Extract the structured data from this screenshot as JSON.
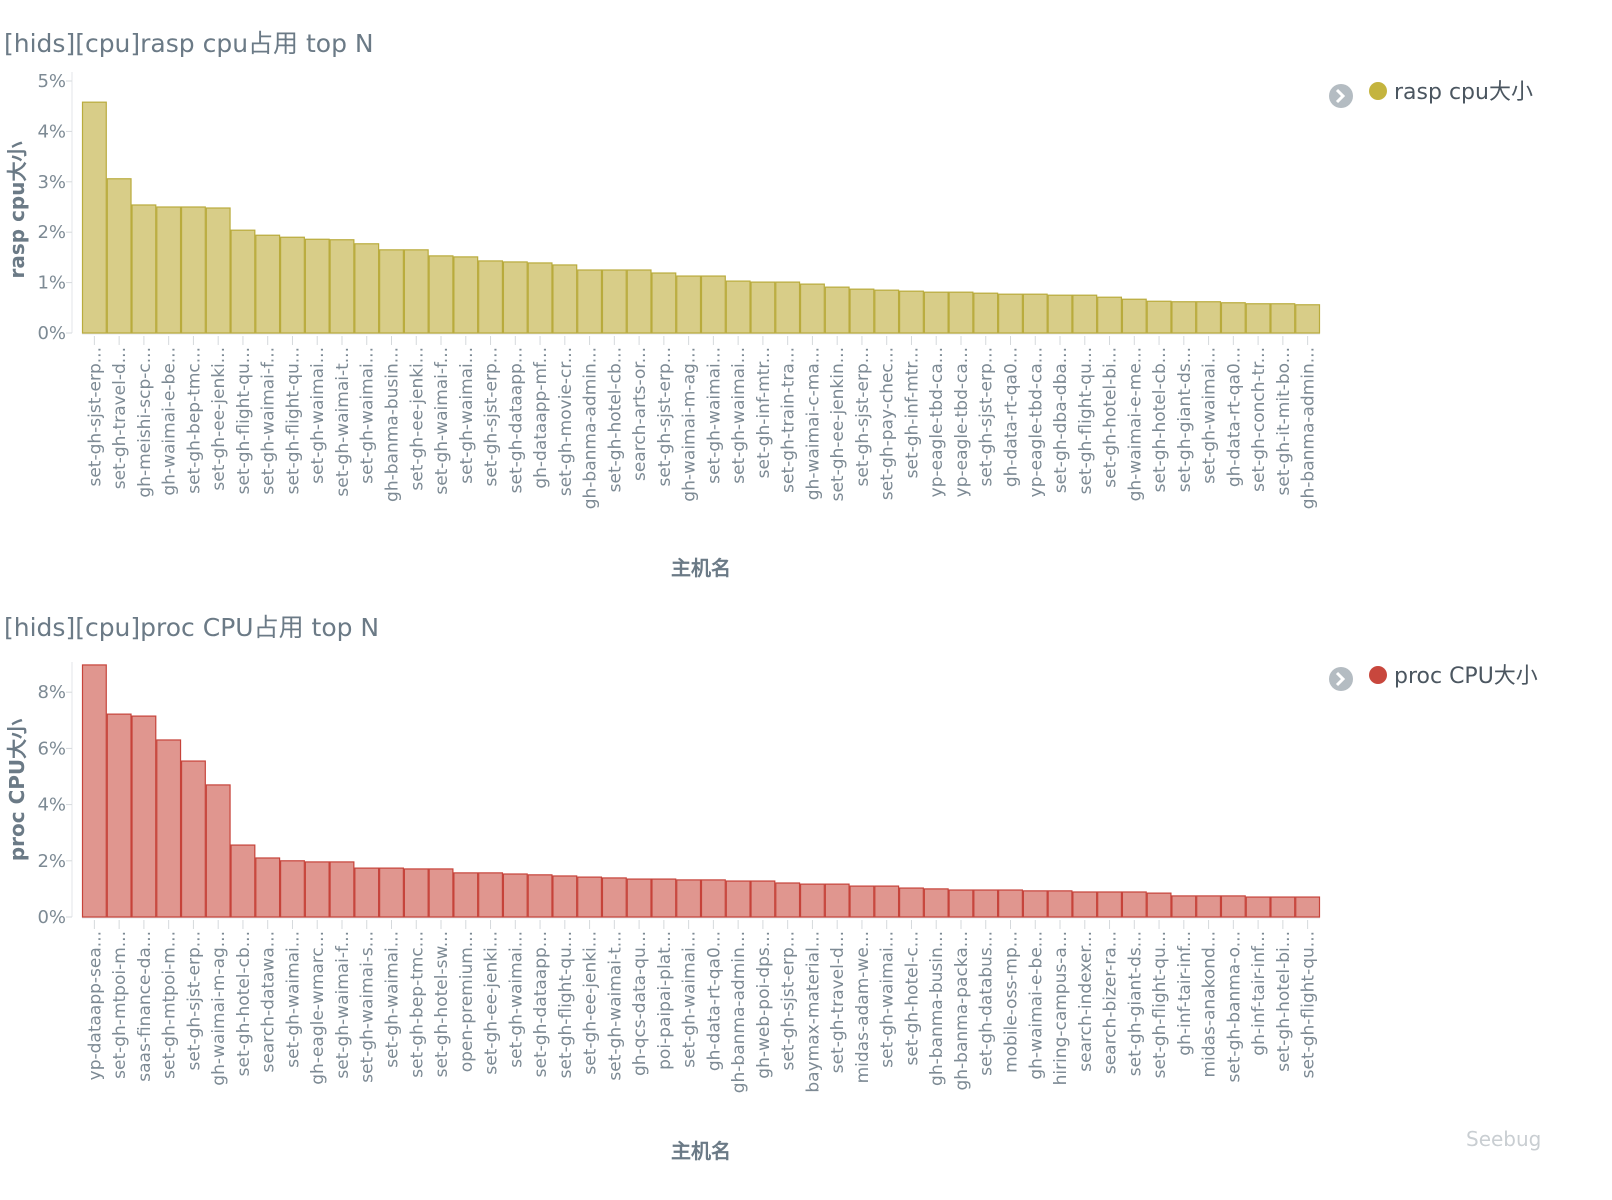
{
  "watermark": "Seebug",
  "chart_data": [
    {
      "type": "bar",
      "title": "[hids][cpu]rasp cpu占用 top N",
      "xlabel": "主机名",
      "ylabel": "rasp cpu大小",
      "legend": {
        "label": "rasp cpu大小",
        "position": "top-right"
      },
      "color": "#d8cd88",
      "border": "#b9ab3c",
      "dot": "#c4b43e",
      "ylim": [
        0,
        5
      ],
      "yticks": [
        "0%",
        "1%",
        "2%",
        "3%",
        "4%",
        "5%"
      ],
      "ytick_values": [
        0,
        1,
        2,
        3,
        4,
        5
      ],
      "categories": [
        "set-gh-sjst-erp...",
        "set-gh-travel-d...",
        "gh-meishi-scp-c...",
        "gh-waimai-e-be...",
        "set-gh-bep-tmc...",
        "set-gh-ee-jenki...",
        "set-gh-flight-qu...",
        "set-gh-waimai-f...",
        "set-gh-flight-qu...",
        "set-gh-waimai...",
        "set-gh-waimai-t...",
        "set-gh-waimai...",
        "gh-banma-busin...",
        "set-gh-ee-jenki...",
        "set-gh-waimai-f...",
        "set-gh-waimai...",
        "set-gh-sjst-erp...",
        "set-gh-dataapp...",
        "gh-dataapp-mf...",
        "set-gh-movie-cr...",
        "gh-banma-admin...",
        "set-gh-hotel-cb...",
        "search-arts-or...",
        "set-gh-sjst-erp...",
        "gh-waimai-m-ag...",
        "set-gh-waimai...",
        "set-gh-waimai...",
        "set-gh-inf-mtr...",
        "set-gh-train-tra...",
        "gh-waimai-c-ma...",
        "set-gh-ee-jenkin...",
        "set-gh-sjst-erp...",
        "set-gh-pay-chec...",
        "set-gh-inf-mtr...",
        "yp-eagle-tbd-ca...",
        "yp-eagle-tbd-ca...",
        "set-gh-sjst-erp...",
        "gh-data-rt-qa0...",
        "yp-eagle-tbd-ca...",
        "set-gh-dba-dba...",
        "set-gh-flight-qu...",
        "set-gh-hotel-bi...",
        "gh-waimai-e-me...",
        "set-gh-hotel-cb...",
        "set-gh-giant-ds...",
        "set-gh-waimai...",
        "gh-data-rt-qa0...",
        "set-gh-conch-tr...",
        "set-gh-it-mit-bo...",
        "gh-banma-admin..."
      ],
      "values": [
        4.58,
        3.06,
        2.54,
        2.5,
        2.5,
        2.48,
        2.04,
        1.94,
        1.9,
        1.86,
        1.85,
        1.77,
        1.65,
        1.65,
        1.53,
        1.51,
        1.43,
        1.41,
        1.39,
        1.35,
        1.25,
        1.25,
        1.25,
        1.19,
        1.13,
        1.13,
        1.03,
        1.01,
        1.01,
        0.97,
        0.91,
        0.87,
        0.85,
        0.83,
        0.81,
        0.81,
        0.79,
        0.77,
        0.77,
        0.75,
        0.75,
        0.71,
        0.67,
        0.63,
        0.62,
        0.62,
        0.6,
        0.58,
        0.58,
        0.56
      ]
    },
    {
      "type": "bar",
      "title": "[hids][cpu]proc CPU占用 top N",
      "xlabel": "主机名",
      "ylabel": "proc CPU大小",
      "legend": {
        "label": "proc CPU大小",
        "position": "top-right"
      },
      "color": "#e0968f",
      "border": "#c6433a",
      "dot": "#c8473d",
      "ylim": [
        0,
        9
      ],
      "yticks": [
        "0%",
        "2%",
        "4%",
        "6%",
        "8%"
      ],
      "ytick_values": [
        0,
        2,
        4,
        6,
        8
      ],
      "categories": [
        "yp-dataapp-sea...",
        "set-gh-mtpoi-m...",
        "saas-finance-da...",
        "set-gh-mtpoi-m...",
        "set-gh-sjst-erp...",
        "gh-waimai-m-ag...",
        "set-gh-hotel-cb...",
        "search-datawa...",
        "set-gh-waimai...",
        "gh-eagle-wmarc...",
        "set-gh-waimai-f...",
        "set-gh-waimai-s...",
        "set-gh-waimai...",
        "set-gh-bep-tmc...",
        "set-gh-hotel-sw...",
        "open-premium...",
        "set-gh-ee-jenki...",
        "set-gh-waimai...",
        "set-gh-dataapp...",
        "set-gh-flight-qu...",
        "set-gh-ee-jenki...",
        "set-gh-waimai-t...",
        "gh-qcs-data-qu...",
        "poi-paipai-plat...",
        "set-gh-waimai...",
        "gh-data-rt-qa0...",
        "gh-banma-admin...",
        "gh-web-poi-dps...",
        "set-gh-sjst-erp...",
        "baymax-material...",
        "set-gh-travel-d...",
        "midas-adam-we...",
        "set-gh-waimai...",
        "set-gh-hotel-c...",
        "gh-banma-busin...",
        "gh-banma-packa...",
        "set-gh-databus...",
        "mobile-oss-mp...",
        "gh-waimai-e-be...",
        "hiring-campus-a...",
        "search-indexer...",
        "search-bizer-ra...",
        "set-gh-giant-ds...",
        "set-gh-flight-qu...",
        "gh-inf-tair-inf...",
        "midas-anakond...",
        "set-gh-banma-o...",
        "gh-inf-tair-inf...",
        "set-gh-hotel-bi...",
        "set-gh-flight-qu..."
      ],
      "values": [
        8.97,
        7.22,
        7.15,
        6.3,
        5.55,
        4.7,
        2.56,
        2.1,
        2.0,
        1.96,
        1.96,
        1.74,
        1.74,
        1.71,
        1.71,
        1.57,
        1.57,
        1.53,
        1.5,
        1.46,
        1.42,
        1.39,
        1.35,
        1.35,
        1.32,
        1.32,
        1.28,
        1.28,
        1.21,
        1.17,
        1.17,
        1.1,
        1.1,
        1.03,
        1.0,
        0.96,
        0.96,
        0.96,
        0.93,
        0.93,
        0.89,
        0.89,
        0.89,
        0.85,
        0.75,
        0.75,
        0.75,
        0.71,
        0.71,
        0.71
      ]
    }
  ]
}
